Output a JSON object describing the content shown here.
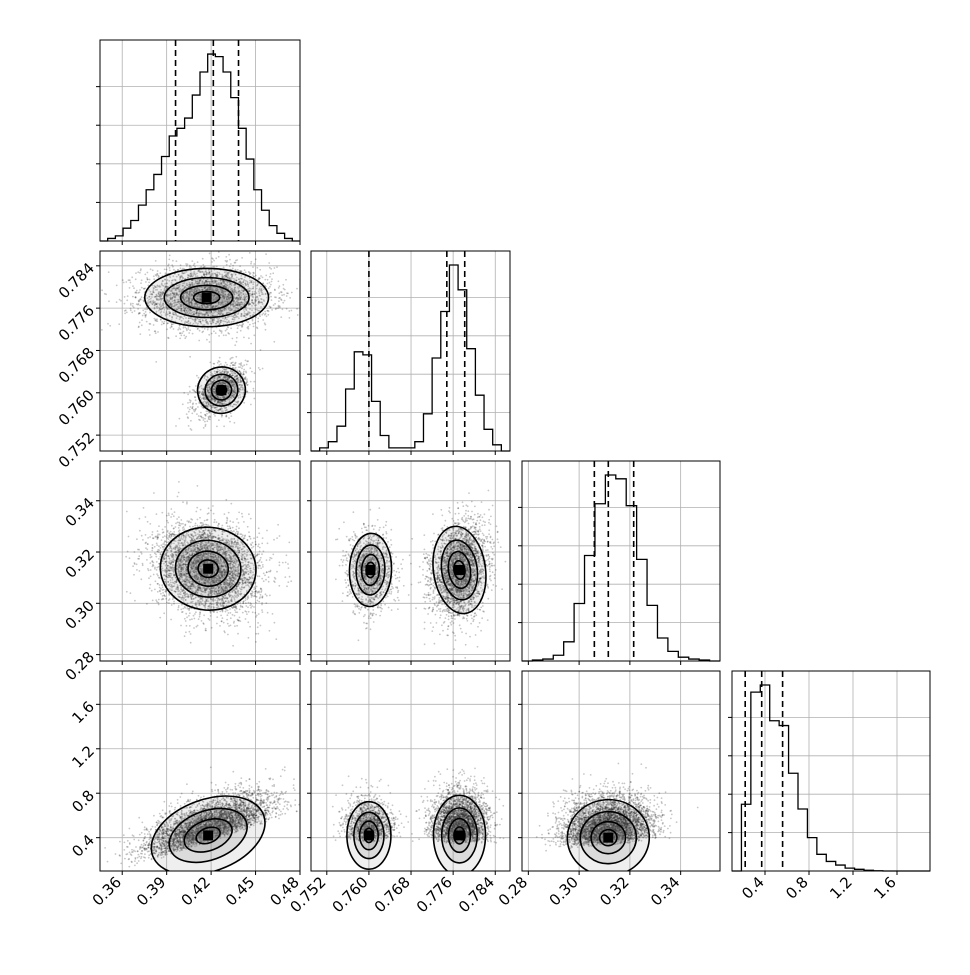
{
  "chart_data": {
    "type": "corner",
    "colors": {
      "ink": "#000000",
      "grid": "#b0b0b0",
      "background": "#ffffff"
    },
    "grid": true,
    "parameters": [
      {
        "id": "p0",
        "range": [
          0.345,
          0.48
        ],
        "ticks": [
          "0.36",
          "0.39",
          "0.42",
          "0.45",
          "0.48"
        ],
        "quantiles": [
          0.396,
          0.4215,
          0.4385
        ]
      },
      {
        "id": "p1",
        "range": [
          0.749,
          0.7868
        ],
        "ticks": [
          "0.752",
          "0.760",
          "0.768",
          "0.776",
          "0.784"
        ],
        "quantiles": [
          0.76,
          0.7748,
          0.7782
        ]
      },
      {
        "id": "p2",
        "range": [
          0.2775,
          0.3555
        ],
        "ticks": [
          "0.28",
          "0.30",
          "0.32",
          "0.34"
        ],
        "quantiles": [
          0.306,
          0.3115,
          0.3215
        ]
      },
      {
        "id": "p3",
        "range": [
          0.1,
          1.9
        ],
        "ticks": [
          "0.4",
          "0.8",
          "1.2",
          "1.6"
        ],
        "quantiles": [
          0.22,
          0.37,
          0.56
        ]
      }
    ],
    "histograms": [
      {
        "param": "p0",
        "counts": [
          0,
          1,
          2,
          5,
          8,
          14,
          20,
          26,
          33,
          41,
          44,
          48,
          57,
          66,
          73,
          72,
          66,
          56,
          44,
          32,
          20,
          12,
          6,
          3,
          1,
          0
        ]
      },
      {
        "param": "p1",
        "counts": [
          0,
          1,
          3,
          8,
          20,
          32,
          31,
          16,
          5,
          1,
          1,
          1,
          3,
          12,
          30,
          45,
          60,
          52,
          33,
          18,
          7,
          2,
          0
        ]
      },
      {
        "param": "p2",
        "counts": [
          0,
          0.5,
          1,
          3,
          10,
          30,
          55,
          82,
          97,
          95,
          81,
          53,
          29,
          12,
          5,
          2,
          1,
          0.5,
          0
        ]
      },
      {
        "param": "p3",
        "counts": [
          0,
          0.28,
          0.75,
          0.78,
          0.63,
          0.61,
          0.41,
          0.26,
          0.14,
          0.07,
          0.04,
          0.025,
          0.012,
          0.007,
          0.003,
          0.001,
          0,
          0,
          0,
          0,
          0
        ]
      }
    ],
    "joint": [
      {
        "x": "p0",
        "y": "p1",
        "modes": [
          {
            "cx": 0.417,
            "cy": 0.778,
            "sx": 0.022,
            "sy": 0.0029,
            "rho": 0.0,
            "n": 3000
          },
          {
            "cx": 0.427,
            "cy": 0.7605,
            "sx": 0.0085,
            "sy": 0.0023,
            "rho": 0.45,
            "n": 1300
          }
        ]
      },
      {
        "x": "p0",
        "y": "p2",
        "modes": [
          {
            "cx": 0.418,
            "cy": 0.3135,
            "sx": 0.017,
            "sy": 0.0085,
            "rho": -0.15,
            "n": 4300
          }
        ]
      },
      {
        "x": "p1",
        "y": "p2",
        "modes": [
          {
            "cx": 0.7603,
            "cy": 0.313,
            "sx": 0.0021,
            "sy": 0.0075,
            "rho": -0.05,
            "n": 1300
          },
          {
            "cx": 0.7772,
            "cy": 0.313,
            "sx": 0.0026,
            "sy": 0.009,
            "rho": 0.2,
            "n": 3000
          }
        ]
      },
      {
        "x": "p0",
        "y": "p3",
        "modes": [
          {
            "cx": 0.418,
            "cy": 0.42,
            "sx": 0.021,
            "sy": 0.17,
            "rho": 0.55,
            "n": 4300
          }
        ]
      },
      {
        "x": "p1",
        "y": "p3",
        "modes": [
          {
            "cx": 0.76,
            "cy": 0.42,
            "sx": 0.0022,
            "sy": 0.16,
            "rho": 0.0,
            "n": 1300
          },
          {
            "cx": 0.7772,
            "cy": 0.42,
            "sx": 0.0026,
            "sy": 0.19,
            "rho": 0.0,
            "n": 3000
          }
        ]
      },
      {
        "x": "p2",
        "y": "p3",
        "modes": [
          {
            "cx": 0.3115,
            "cy": 0.4,
            "sx": 0.0085,
            "sy": 0.18,
            "rho": 0.1,
            "n": 4300
          }
        ]
      }
    ]
  }
}
